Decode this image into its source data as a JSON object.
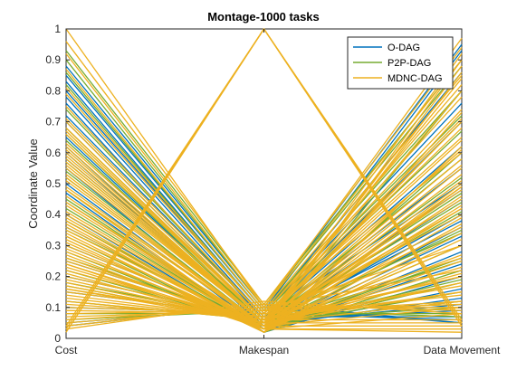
{
  "chart_data": {
    "type": "line",
    "subtype": "parallel-coordinates",
    "title": "Montage-1000 tasks",
    "ylabel": "Coordinate Value",
    "xlabel": "",
    "categories": [
      "Cost",
      "Makespan",
      "Data Movement"
    ],
    "ylim": [
      0,
      1
    ],
    "yticks": [
      "0",
      "0.1",
      "0.2",
      "0.3",
      "0.4",
      "0.5",
      "0.6",
      "0.7",
      "0.8",
      "0.9",
      "1"
    ],
    "grid": false,
    "legend_position": "top-right",
    "series": [
      {
        "name": "O-DAG",
        "color": "#0072BD",
        "lines": [
          [
            0.88,
            0.1,
            0.95
          ],
          [
            0.85,
            0.09,
            0.93
          ],
          [
            0.83,
            0.08,
            0.86
          ],
          [
            0.8,
            0.08,
            0.76
          ],
          [
            0.78,
            0.07,
            0.7
          ],
          [
            0.76,
            0.06,
            0.62
          ],
          [
            0.7,
            0.06,
            0.55
          ],
          [
            0.65,
            0.05,
            0.48
          ],
          [
            0.62,
            0.04,
            0.45
          ],
          [
            0.6,
            0.04,
            0.4
          ],
          [
            0.55,
            0.03,
            0.36
          ],
          [
            0.5,
            0.03,
            0.33
          ],
          [
            0.47,
            0.02,
            0.28
          ],
          [
            0.44,
            0.03,
            0.24
          ],
          [
            0.4,
            0.02,
            0.2
          ],
          [
            0.36,
            0.03,
            0.16
          ],
          [
            0.3,
            0.04,
            0.13
          ],
          [
            0.25,
            0.05,
            0.11
          ],
          [
            0.2,
            0.06,
            0.09
          ],
          [
            0.15,
            0.07,
            0.07
          ],
          [
            0.1,
            0.08,
            0.06
          ],
          [
            0.05,
            0.1,
            0.05
          ],
          [
            0.04,
            0.11,
            0.05
          ],
          [
            0.72,
            0.07,
            0.5
          ],
          [
            0.58,
            0.05,
            0.38
          ]
        ]
      },
      {
        "name": "P2P-DAG",
        "color": "#77AC30",
        "lines": [
          [
            0.93,
            0.11,
            0.9
          ],
          [
            0.9,
            0.1,
            0.88
          ],
          [
            0.86,
            0.09,
            0.8
          ],
          [
            0.82,
            0.08,
            0.72
          ],
          [
            0.74,
            0.07,
            0.67
          ],
          [
            0.68,
            0.06,
            0.58
          ],
          [
            0.64,
            0.05,
            0.52
          ],
          [
            0.57,
            0.05,
            0.47
          ],
          [
            0.52,
            0.04,
            0.41
          ],
          [
            0.48,
            0.04,
            0.35
          ],
          [
            0.42,
            0.03,
            0.3
          ],
          [
            0.38,
            0.03,
            0.26
          ],
          [
            0.33,
            0.02,
            0.22
          ],
          [
            0.28,
            0.03,
            0.18
          ],
          [
            0.22,
            0.04,
            0.15
          ],
          [
            0.17,
            0.05,
            0.12
          ],
          [
            0.12,
            0.06,
            0.1
          ],
          [
            0.08,
            0.08,
            0.08
          ],
          [
            0.06,
            0.09,
            0.07
          ],
          [
            0.35,
            0.04,
            0.6
          ],
          [
            0.26,
            0.05,
            0.44
          ],
          [
            0.45,
            0.03,
            0.8
          ],
          [
            0.18,
            0.06,
            0.34
          ],
          [
            0.66,
            0.05,
            0.25
          ],
          [
            0.54,
            0.04,
            0.19
          ]
        ]
      },
      {
        "name": "MDNC-DAG",
        "color": "#EDB120",
        "lines": [
          [
            1.0,
            0.1,
            0.97
          ],
          [
            0.96,
            0.11,
            0.94
          ],
          [
            0.92,
            0.1,
            0.9
          ],
          [
            0.87,
            0.09,
            0.85
          ],
          [
            0.81,
            0.08,
            0.82
          ],
          [
            0.79,
            0.08,
            0.78
          ],
          [
            0.75,
            0.07,
            0.74
          ],
          [
            0.71,
            0.07,
            0.71
          ],
          [
            0.67,
            0.06,
            0.68
          ],
          [
            0.63,
            0.06,
            0.64
          ],
          [
            0.61,
            0.05,
            0.61
          ],
          [
            0.59,
            0.05,
            0.58
          ],
          [
            0.56,
            0.05,
            0.56
          ],
          [
            0.53,
            0.04,
            0.53
          ],
          [
            0.51,
            0.04,
            0.51
          ],
          [
            0.49,
            0.04,
            0.49
          ],
          [
            0.46,
            0.03,
            0.46
          ],
          [
            0.43,
            0.03,
            0.43
          ],
          [
            0.41,
            0.03,
            0.42
          ],
          [
            0.39,
            0.02,
            0.39
          ],
          [
            0.37,
            0.02,
            0.37
          ],
          [
            0.34,
            0.02,
            0.34
          ],
          [
            0.32,
            0.02,
            0.32
          ],
          [
            0.29,
            0.03,
            0.3
          ],
          [
            0.27,
            0.03,
            0.27
          ],
          [
            0.24,
            0.03,
            0.25
          ],
          [
            0.23,
            0.04,
            0.23
          ],
          [
            0.21,
            0.04,
            0.21
          ],
          [
            0.19,
            0.05,
            0.2
          ],
          [
            0.16,
            0.05,
            0.18
          ],
          [
            0.14,
            0.06,
            0.17
          ],
          [
            0.13,
            0.06,
            0.15
          ],
          [
            0.11,
            0.07,
            0.14
          ],
          [
            0.09,
            0.08,
            0.12
          ],
          [
            0.07,
            0.09,
            0.11
          ],
          [
            0.05,
            0.1,
            0.1
          ],
          [
            0.04,
            0.11,
            0.09
          ],
          [
            0.03,
            0.12,
            0.08
          ],
          [
            0.35,
            0.03,
            0.9
          ],
          [
            0.3,
            0.04,
            0.88
          ],
          [
            0.25,
            0.05,
            0.8
          ],
          [
            0.2,
            0.06,
            0.7
          ],
          [
            0.15,
            0.07,
            0.65
          ],
          [
            0.1,
            0.08,
            0.6
          ],
          [
            0.28,
            0.04,
            0.55
          ],
          [
            0.18,
            0.05,
            0.45
          ],
          [
            0.12,
            0.06,
            0.4
          ],
          [
            0.22,
            0.05,
            0.36
          ],
          [
            0.08,
            0.09,
            0.3
          ],
          [
            0.16,
            0.06,
            0.26
          ],
          [
            0.06,
            0.1,
            0.22
          ],
          [
            0.26,
            0.04,
            0.18
          ],
          [
            0.7,
            0.06,
            0.2
          ],
          [
            0.62,
            0.05,
            0.15
          ],
          [
            0.55,
            0.05,
            0.12
          ],
          [
            0.48,
            0.04,
            0.1
          ],
          [
            0.4,
            0.03,
            0.08
          ],
          [
            0.66,
            0.06,
            0.06
          ],
          [
            0.58,
            0.05,
            0.05
          ],
          [
            0.44,
            0.04,
            0.04
          ],
          [
            0.36,
            0.03,
            0.03
          ],
          [
            0.33,
            0.03,
            0.02
          ],
          [
            0.02,
            1.0,
            0.05
          ],
          [
            0.03,
            1.0,
            0.04
          ],
          [
            0.04,
            1.0,
            0.05
          ],
          [
            0.02,
            1.0,
            0.06
          ],
          [
            0.48,
            0.02,
            0.49
          ],
          [
            0.44,
            0.03,
            0.73
          ],
          [
            0.38,
            0.02,
            0.62
          ],
          [
            0.31,
            0.03,
            0.5
          ],
          [
            0.24,
            0.04,
            0.48
          ],
          [
            0.17,
            0.05,
            0.42
          ],
          [
            0.52,
            0.04,
            0.86
          ],
          [
            0.57,
            0.05,
            0.92
          ],
          [
            0.6,
            0.05,
            0.7
          ],
          [
            0.68,
            0.06,
            0.84
          ]
        ]
      }
    ]
  }
}
